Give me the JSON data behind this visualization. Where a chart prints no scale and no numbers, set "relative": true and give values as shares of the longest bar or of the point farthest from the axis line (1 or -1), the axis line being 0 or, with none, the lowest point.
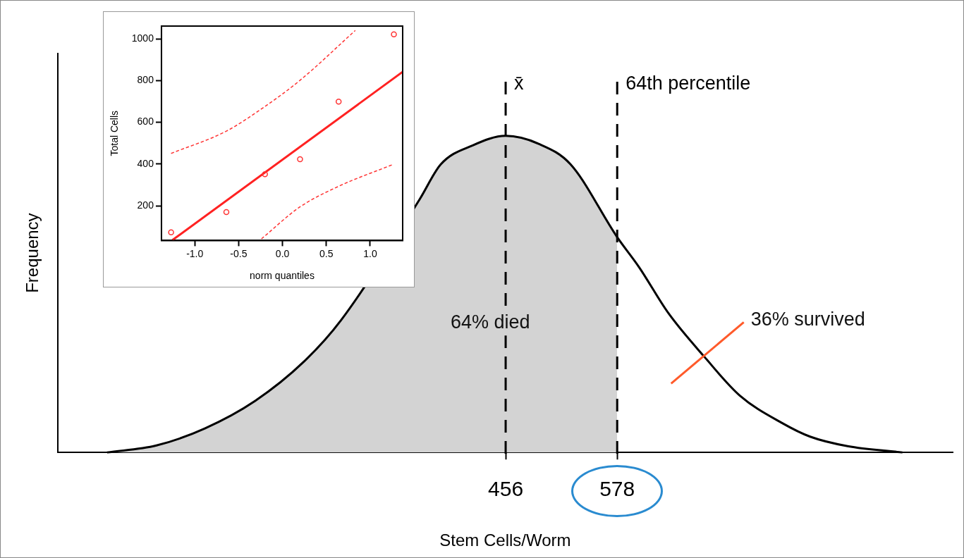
{
  "chart_data": [
    {
      "type": "line",
      "xlabel": "Stem Cells/Worm",
      "ylabel": "Frequency",
      "relative": true,
      "xlim": [
        -34,
        945
      ],
      "xticks": [
        456,
        578
      ],
      "tick_labels": "x",
      "series": [
        {
          "type": "area",
          "color": "#d3d3d3",
          "x": [
            20,
            74,
            127,
            182,
            235,
            276,
            362,
            385,
            420,
            456,
            492,
            527,
            578
          ],
          "values": [
            0,
            0.022,
            0.076,
            0.163,
            0.286,
            0.418,
            0.8,
            0.91,
            0.97,
            1,
            0.975,
            0.91,
            0.68
          ]
        },
        {
          "color": "#000000",
          "x": [
            20,
            74,
            127,
            182,
            235,
            276,
            362,
            385,
            420,
            456,
            492,
            527,
            578,
            602,
            634,
            674,
            712,
            759,
            789,
            830,
            890
          ],
          "values": [
            0,
            0.022,
            0.076,
            0.163,
            0.286,
            0.418,
            0.8,
            0.91,
            0.97,
            1,
            0.975,
            0.91,
            0.68,
            0.585,
            0.44,
            0.3,
            0.18,
            0.092,
            0.05,
            0.02,
            0
          ]
        }
      ],
      "ref_lines": [
        {
          "axis": "x",
          "value": 456,
          "label": "x̄",
          "color": "#000000",
          "line_style": "dashed"
        },
        {
          "axis": "x",
          "value": 578,
          "label": "64th percentile",
          "color": "#000000",
          "line_style": "dashed"
        }
      ],
      "annotations": [
        "64% died",
        {
          "text": "36% survived",
          "x": 674,
          "y": 0.3
        }
      ]
    },
    {
      "type": "scatter",
      "xlabel": "norm quantiles",
      "ylabel": "Total Cells",
      "xlim": [
        -1.38,
        1.37
      ],
      "ylim": [
        34,
        1061
      ],
      "xticks": [
        {
          "value": -1,
          "label": "-1.0"
        },
        {
          "value": -0.5,
          "label": "-0.5"
        },
        {
          "value": 0,
          "label": "0.0"
        },
        {
          "value": 0.5,
          "label": "0.5"
        },
        {
          "value": 1,
          "label": "1.0"
        }
      ],
      "yticks": [
        200,
        400,
        600,
        800,
        1000
      ],
      "series": [
        {
          "marker": "circle",
          "color": "#ff3333",
          "x": [
            -1.27,
            -0.64,
            -0.2,
            0.2,
            0.64,
            1.27
          ],
          "values": [
            73,
            170,
            352,
            423,
            699,
            1021
          ]
        },
        {
          "type": "line",
          "color": "#ff2222",
          "x": [
            -1.255,
            1.37
          ],
          "values": [
            36,
            842
          ]
        },
        {
          "type": "line",
          "color": "#ff3333",
          "line_style": "dashed",
          "x": [
            -1.27,
            -0.64,
            -0.21,
            0.196,
            0.83
          ],
          "values": [
            451,
            558,
            673,
            800,
            1040
          ]
        },
        {
          "type": "line",
          "color": "#ff3333",
          "line_style": "dashed",
          "x": [
            -0.24,
            0.196,
            0.626,
            1.258
          ],
          "values": [
            42,
            194,
            291,
            398
          ]
        }
      ]
    }
  ]
}
